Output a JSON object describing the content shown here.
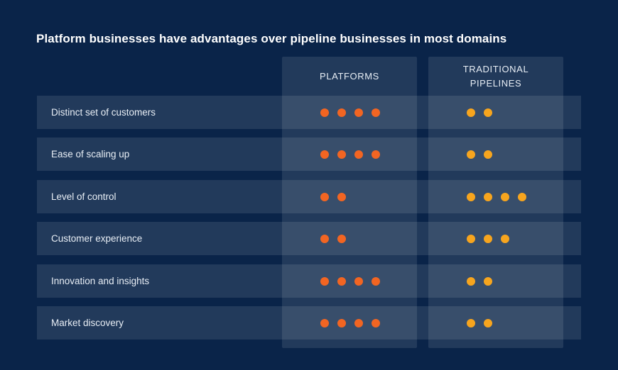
{
  "title": "Platform businesses have advantages over pipeline businesses in most domains",
  "colors": {
    "platforms": "#f26522",
    "pipelines": "#f7a51e"
  },
  "chart_data": {
    "type": "table",
    "title": "Platform businesses have advantages over pipeline businesses in most domains",
    "columns": [
      "PLATFORMS",
      "TRADITIONAL PIPELINES"
    ],
    "rows": [
      {
        "label": "Distinct set of customers",
        "platforms": 4,
        "pipelines": 2
      },
      {
        "label": "Ease of scaling up",
        "platforms": 4,
        "pipelines": 2
      },
      {
        "label": "Level of control",
        "platforms": 2,
        "pipelines": 4
      },
      {
        "label": "Customer experience",
        "platforms": 2,
        "pipelines": 3
      },
      {
        "label": "Innovation and insights",
        "platforms": 4,
        "pipelines": 2
      },
      {
        "label": "Market discovery",
        "platforms": 4,
        "pipelines": 2
      }
    ]
  }
}
